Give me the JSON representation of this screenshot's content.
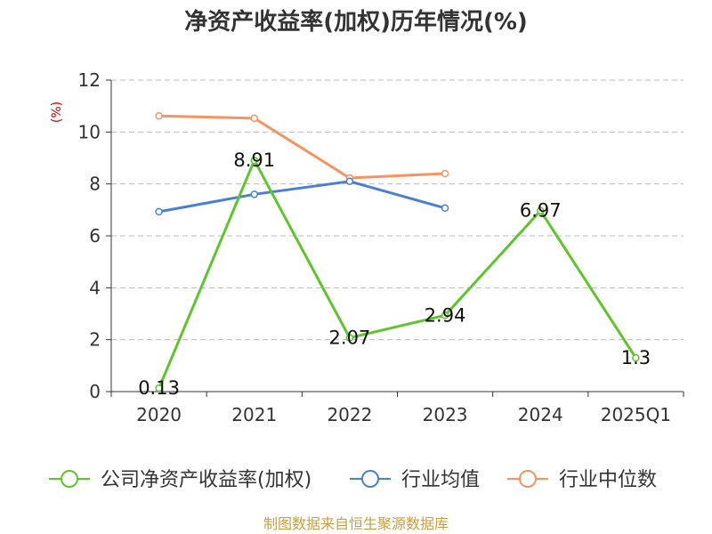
{
  "chart_data": {
    "type": "line",
    "title": "净资产收益率(加权)历年情况(%)",
    "ylabel": "(%)",
    "categories": [
      "2020",
      "2021",
      "2022",
      "2023",
      "2024",
      "2025Q1"
    ],
    "ylim": [
      0,
      12
    ],
    "yticks": [
      0,
      2,
      4,
      6,
      8,
      10,
      12
    ],
    "grid": true,
    "legend_position": "bottom",
    "series": [
      {
        "name": "公司净资产收益率(加权)",
        "color": "#5ec52a",
        "values": [
          0.13,
          8.91,
          2.07,
          2.94,
          6.97,
          1.3
        ],
        "labels": [
          "0.13",
          "8.91",
          "2.07",
          "2.94",
          "6.97",
          "1.3"
        ]
      },
      {
        "name": "行业均值",
        "color": "#4a7fd4",
        "values": [
          6.93,
          7.6,
          8.1,
          7.07,
          null,
          null
        ]
      },
      {
        "name": "行业中位数",
        "color": "#f59362",
        "values": [
          10.62,
          10.53,
          8.23,
          8.4,
          null,
          null
        ]
      }
    ]
  },
  "source": "制图数据来自恒生聚源数据库"
}
